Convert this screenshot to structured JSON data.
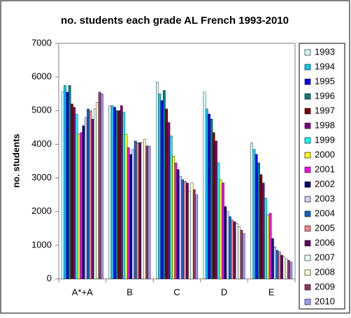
{
  "chart_data": {
    "type": "bar",
    "title": "no. students each grade AL French 1993-2010",
    "y_label": "no. students",
    "categories": [
      "A*+A",
      "B",
      "C",
      "D",
      "E"
    ],
    "ylim": [
      0,
      7000
    ],
    "yticks": [
      0,
      1000,
      2000,
      3000,
      4000,
      5000,
      6000,
      7000
    ],
    "grid": false,
    "legend": "right",
    "series": [
      {
        "name": "1993",
        "color": "#ccffff",
        "values": [
          5550,
          5150,
          5850,
          5550,
          4050
        ]
      },
      {
        "name": "1994",
        "color": "#00ccff",
        "values": [
          5750,
          5150,
          5500,
          5050,
          3850
        ]
      },
      {
        "name": "1995",
        "color": "#0000ff",
        "values": [
          5550,
          5100,
          5300,
          4900,
          3700
        ]
      },
      {
        "name": "1996",
        "color": "#008080",
        "values": [
          5750,
          5000,
          5600,
          4750,
          3450
        ]
      },
      {
        "name": "1997",
        "color": "#800000",
        "values": [
          5200,
          5000,
          5050,
          4350,
          3100
        ]
      },
      {
        "name": "1998",
        "color": "#800080",
        "values": [
          5100,
          5150,
          4650,
          4100,
          2850
        ]
      },
      {
        "name": "1999",
        "color": "#00ffff",
        "values": [
          4900,
          4950,
          4250,
          3450,
          2400
        ]
      },
      {
        "name": "2000",
        "color": "#ffff00",
        "values": [
          4300,
          4300,
          3650,
          2950,
          1900
        ]
      },
      {
        "name": "2001",
        "color": "#ff00ff",
        "values": [
          4350,
          3900,
          3450,
          2850,
          1950
        ]
      },
      {
        "name": "2002",
        "color": "#000080",
        "values": [
          4550,
          3700,
          3250,
          2150,
          1200
        ]
      },
      {
        "name": "2003",
        "color": "#ccccff",
        "values": [
          4800,
          3850,
          3050,
          2000,
          950
        ]
      },
      {
        "name": "2004",
        "color": "#0066cc",
        "values": [
          5050,
          4100,
          2950,
          1850,
          850
        ]
      },
      {
        "name": "2005",
        "color": "#ff8080",
        "values": [
          5000,
          4050,
          2900,
          1750,
          800
        ]
      },
      {
        "name": "2006",
        "color": "#660066",
        "values": [
          4750,
          4050,
          2850,
          1700,
          700
        ]
      },
      {
        "name": "2007",
        "color": "#e0ffff",
        "values": [
          5050,
          4050,
          2600,
          1650,
          650
        ]
      },
      {
        "name": "2008",
        "color": "#ffffcc",
        "values": [
          5250,
          4150,
          2850,
          1550,
          600
        ]
      },
      {
        "name": "2009",
        "color": "#993366",
        "values": [
          5550,
          3950,
          2650,
          1450,
          550
        ]
      },
      {
        "name": "2010",
        "color": "#9999ff",
        "values": [
          5500,
          3950,
          2500,
          1350,
          500
        ]
      }
    ]
  }
}
